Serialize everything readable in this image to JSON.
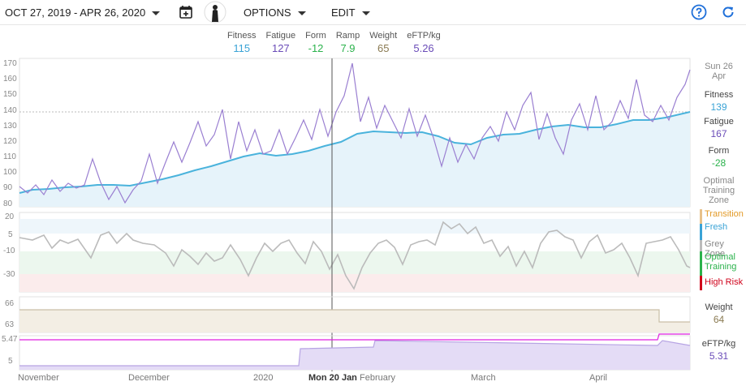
{
  "header": {
    "date_range": "OCT 27, 2019 - APR 26, 2020",
    "options_label": "OPTIONS",
    "edit_label": "EDIT"
  },
  "stats": [
    {
      "label": "Fitness",
      "value": "115",
      "color": "#3aa3d6"
    },
    {
      "label": "Fatigue",
      "value": "127",
      "color": "#6a4cb8"
    },
    {
      "label": "Form",
      "value": "-12",
      "color": "#2bb24c"
    },
    {
      "label": "Ramp",
      "value": "7.9",
      "color": "#2bb24c"
    },
    {
      "label": "Weight",
      "value": "65",
      "color": "#8a7a52"
    },
    {
      "label": "eFTP/kg",
      "value": "5.26",
      "color": "#6a4cb8"
    }
  ],
  "side": {
    "date_day": "Sun 26",
    "date_month": "Apr",
    "fitness_label": "Fitness",
    "fitness_value": "139",
    "fatigue_label": "Fatigue",
    "fatigue_value": "167",
    "form_label": "Form",
    "form_value": "-28",
    "optimal_label_1": "Optimal",
    "optimal_label_2": "Training",
    "optimal_label_3": "Zone",
    "weight_label": "Weight",
    "weight_value": "64",
    "eftp_label": "eFTP/kg",
    "eftp_value": "5.31"
  },
  "form_legend": {
    "transition": "Transition",
    "fresh": "Fresh",
    "grey": "Grey Zone",
    "optimal_1": "Optimal",
    "optimal_2": "Training",
    "high_risk": "High Risk"
  },
  "axes": {
    "fitness_ticks": [
      "170",
      "160",
      "150",
      "140",
      "130",
      "120",
      "110",
      "100",
      "90",
      "80"
    ],
    "form_ticks": [
      "20",
      "5",
      "-10",
      "-30"
    ],
    "weight_ticks": [
      "66",
      "63"
    ],
    "eftp_ticks": [
      "5.47",
      "5"
    ]
  },
  "months": [
    "November",
    "December",
    "2020",
    "Mon 20 Jan",
    "February",
    "March",
    "April"
  ],
  "colors": {
    "fitness": "#4ab3dc",
    "fatigue": "#9a7fd1",
    "form_fresh": "#3aa3d6",
    "form_grey": "#bbbbbb",
    "form_optimal": "#2bb24c",
    "form_high_risk": "#d0021b",
    "weight_fill": "#f3eee4",
    "eftp_fill": "#e4dcf6",
    "eftp_line": "#e020e0"
  },
  "icons": {
    "calendar": "calendar-add-icon",
    "help": "help-circle-icon",
    "refresh": "refresh-icon"
  }
}
